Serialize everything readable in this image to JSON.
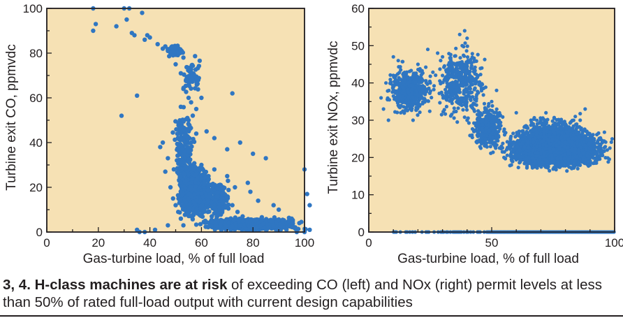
{
  "caption": {
    "bold": "3, 4. H-class machines are at risk",
    "rest": " of exceeding CO (left) and NOx (right) permit levels at less than 50% of rated full-load output with current design capabilities"
  },
  "colors": {
    "background": "#f6e1b4",
    "points": "#2f76c2",
    "axis": "#231f20"
  },
  "chart_data": [
    {
      "type": "scatter",
      "title": "",
      "xlabel": "Gas-turbine load, % of full load",
      "ylabel": "Turbine exit CO, ppmvdc",
      "xlim": [
        0,
        100
      ],
      "ylim": [
        0,
        100
      ],
      "xticks": [
        "0",
        "20",
        "40",
        "60",
        "80",
        "100"
      ],
      "yticks": [
        "0",
        "20",
        "40",
        "60",
        "80",
        "100"
      ],
      "grid": false,
      "series": [
        {
          "points": [
            [
              18,
              100
            ],
            [
              19,
              93
            ],
            [
              18,
              90
            ],
            [
              27,
              92
            ],
            [
              30,
              100
            ],
            [
              32,
              100
            ],
            [
              37,
              98
            ],
            [
              31,
              95
            ],
            [
              33,
              89
            ],
            [
              34,
              88
            ],
            [
              38,
              86
            ],
            [
              39,
              88
            ],
            [
              40,
              87
            ],
            [
              43,
              84
            ],
            [
              45,
              82
            ],
            [
              46,
              83
            ],
            [
              47,
              81
            ],
            [
              48,
              80
            ],
            [
              49,
              79
            ],
            [
              50,
              82
            ],
            [
              51,
              80
            ],
            [
              52,
              81
            ],
            [
              53,
              78
            ],
            [
              50,
              75
            ],
            [
              52,
              71
            ],
            [
              54,
              68
            ],
            [
              53,
              64
            ],
            [
              55,
              60
            ],
            [
              56,
              58
            ],
            [
              52,
              56
            ],
            [
              58,
              55
            ],
            [
              60,
              60
            ],
            [
              55,
              50
            ],
            [
              54,
              46
            ],
            [
              58,
              44
            ],
            [
              56,
              40
            ],
            [
              55,
              36
            ],
            [
              62,
              45
            ],
            [
              65,
              42
            ],
            [
              70,
              37
            ],
            [
              75,
              40
            ],
            [
              80,
              35
            ],
            [
              85,
              33
            ],
            [
              72,
              62
            ],
            [
              35,
              61
            ],
            [
              29,
              52
            ],
            [
              60,
              30
            ],
            [
              65,
              28
            ],
            [
              70,
              25
            ],
            [
              78,
              22
            ],
            [
              79,
              18
            ],
            [
              82,
              14
            ],
            [
              88,
              12
            ],
            [
              90,
              10
            ],
            [
              95,
              6
            ],
            [
              98,
              4
            ],
            [
              100,
              28
            ],
            [
              101,
              17
            ],
            [
              102,
              12
            ],
            [
              45,
              40
            ],
            [
              44,
              38
            ],
            [
              47,
              33
            ],
            [
              46,
              27
            ],
            [
              48,
              20
            ],
            [
              49,
              15
            ],
            [
              50,
              12
            ],
            [
              51,
              9
            ],
            [
              52,
              6
            ],
            [
              53,
              3
            ],
            [
              35,
              1
            ],
            [
              36,
              0
            ],
            [
              38,
              0
            ],
            [
              42,
              1
            ],
            [
              47,
              3
            ],
            [
              66,
              16
            ],
            [
              68,
              14
            ],
            [
              72,
              12
            ],
            [
              74,
              9
            ],
            [
              76,
              7
            ],
            [
              79,
              5
            ],
            [
              83,
              3
            ],
            [
              86,
              2
            ],
            [
              90,
              1
            ],
            [
              93,
              1
            ],
            [
              97,
              0
            ],
            [
              100,
              0
            ],
            [
              102,
              1
            ],
            [
              73,
              20
            ],
            [
              67,
              10
            ],
            [
              64,
              7
            ]
          ],
          "clusters": [
            {
              "x": [
                50,
                64
              ],
              "y": [
                5,
                32
              ],
              "count": 1100
            },
            {
              "x": [
                48,
                58
              ],
              "y": [
                18,
                60
              ],
              "count": 160
            },
            {
              "x": [
                52,
                60
              ],
              "y": [
                60,
                80
              ],
              "count": 60
            },
            {
              "x": [
                46,
                54
              ],
              "y": [
                78,
                84
              ],
              "count": 70
            },
            {
              "x": [
                55,
                103
              ],
              "y": [
                0,
                7
              ],
              "count": 700
            },
            {
              "x": [
                60,
                72
              ],
              "y": [
                4,
                25
              ],
              "count": 180
            }
          ]
        }
      ]
    },
    {
      "type": "scatter",
      "title": "",
      "xlabel": "Gas-turbine load, % of full load",
      "ylabel": "Turbine exit NOx, ppmvdc",
      "xlim": [
        0,
        100
      ],
      "ylim": [
        0,
        60
      ],
      "xticks": [
        "0",
        "50",
        "100"
      ],
      "yticks": [
        "0",
        "10",
        "20",
        "30",
        "40",
        "50",
        "60"
      ],
      "grid": false,
      "series": [
        {
          "points": [
            [
              37,
              53
            ],
            [
              39,
              54
            ],
            [
              40,
              52
            ],
            [
              38,
              50
            ],
            [
              24,
              49
            ],
            [
              28,
              48
            ],
            [
              30,
              47
            ],
            [
              43,
              46
            ],
            [
              46,
              44
            ],
            [
              35,
              45
            ],
            [
              20,
              45
            ],
            [
              12,
              46
            ],
            [
              10,
              47
            ],
            [
              50,
              35
            ],
            [
              51,
              30
            ],
            [
              52,
              38
            ],
            [
              5,
              36
            ],
            [
              6,
              33
            ],
            [
              8,
              30
            ],
            [
              48,
              28
            ],
            [
              55,
              27
            ],
            [
              55,
              20
            ],
            [
              60,
              32
            ],
            [
              70,
              30
            ],
            [
              75,
              27
            ],
            [
              80,
              29
            ],
            [
              84,
              31
            ],
            [
              86,
              30
            ],
            [
              88,
              33
            ],
            [
              90,
              26
            ],
            [
              95,
              24
            ],
            [
              97,
              22
            ],
            [
              99,
              25
            ],
            [
              90,
              18
            ],
            [
              85,
              17
            ],
            [
              80,
              19
            ],
            [
              65,
              20
            ],
            [
              58,
              18
            ],
            [
              44,
              24
            ],
            [
              42,
              26
            ],
            [
              40,
              30
            ],
            [
              35,
              36
            ],
            [
              30,
              42
            ],
            [
              25,
              40
            ],
            [
              22,
              38
            ],
            [
              15,
              35
            ],
            [
              18,
              30
            ],
            [
              13,
              32
            ],
            [
              7,
              40
            ],
            [
              10,
              38
            ]
          ],
          "clusters": [
            {
              "x": [
                6,
                28
              ],
              "y": [
                30,
                46
              ],
              "count": 480
            },
            {
              "x": [
                25,
                50
              ],
              "y": [
                28,
                52
              ],
              "count": 420
            },
            {
              "x": [
                40,
                57
              ],
              "y": [
                20,
                36
              ],
              "count": 300
            },
            {
              "x": [
                52,
                100
              ],
              "y": [
                16,
                29
              ],
              "count": 3200
            },
            {
              "x": [
                60,
                92
              ],
              "y": [
                20,
                33
              ],
              "count": 300
            }
          ],
          "zero_band": {
            "x": [
              9,
              100
            ],
            "y": 0
          }
        }
      ]
    }
  ]
}
